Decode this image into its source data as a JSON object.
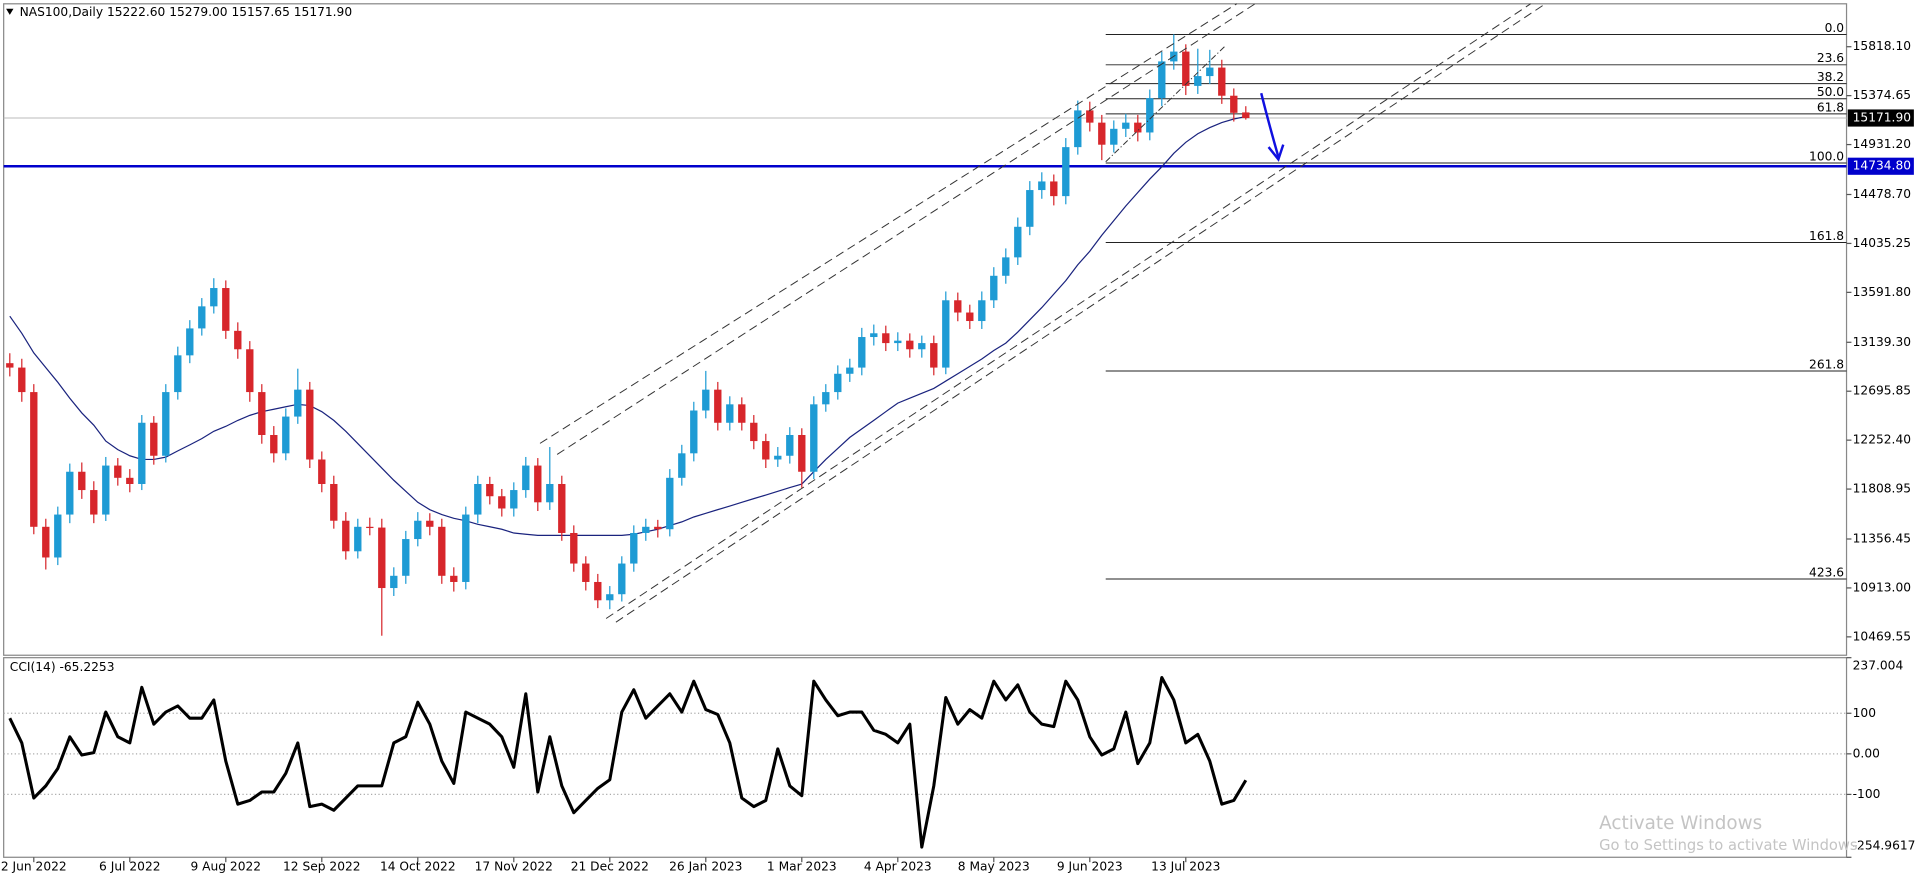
{
  "chart_data": [
    {
      "type": "candlestick",
      "header": "NAS100,Daily  15222.60 15279.00 15157.65 15171.90",
      "categories": [
        null,
        null,
        "2 Jun 2022",
        null,
        null,
        null,
        null,
        null,
        null,
        null,
        "6 Jul 2022",
        null,
        null,
        null,
        null,
        null,
        null,
        null,
        "9 Aug 2022",
        null,
        null,
        null,
        null,
        null,
        null,
        null,
        "12 Sep 2022",
        null,
        null,
        null,
        null,
        null,
        null,
        null,
        "14 Oct 2022",
        null,
        null,
        null,
        null,
        null,
        null,
        null,
        "17 Nov 2022",
        null,
        null,
        null,
        null,
        null,
        null,
        null,
        "21 Dec 2022",
        null,
        null,
        null,
        null,
        null,
        null,
        null,
        "26 Jan 2023",
        null,
        null,
        null,
        null,
        null,
        null,
        null,
        "1 Mar 2023",
        null,
        null,
        null,
        null,
        null,
        null,
        null,
        "4 Apr 2023",
        null,
        null,
        null,
        null,
        null,
        null,
        null,
        "8 May 2023",
        null,
        null,
        null,
        null,
        null,
        null,
        null,
        "9 Jun 2023",
        null,
        null,
        null,
        null,
        null,
        null,
        null,
        "13 Jul 2023",
        null,
        null,
        null,
        null,
        null
      ],
      "ohlc": [
        [
          12950,
          13040,
          12830,
          12910
        ],
        [
          12910,
          12990,
          12600,
          12688
        ],
        [
          12688,
          12760,
          11400,
          11467
        ],
        [
          11467,
          11540,
          11080,
          11189
        ],
        [
          11189,
          11650,
          11120,
          11578
        ],
        [
          11578,
          12040,
          11500,
          11966
        ],
        [
          11966,
          12050,
          11720,
          11800
        ],
        [
          11800,
          11880,
          11500,
          11578
        ],
        [
          11578,
          12100,
          11520,
          12022
        ],
        [
          12022,
          12090,
          11840,
          11911
        ],
        [
          11911,
          11990,
          11780,
          11855
        ],
        [
          11855,
          12480,
          11800,
          12410
        ],
        [
          12410,
          12470,
          12030,
          12111
        ],
        [
          12111,
          12760,
          12050,
          12688
        ],
        [
          12688,
          13100,
          12620,
          13021
        ],
        [
          13021,
          13340,
          12950,
          13265
        ],
        [
          13265,
          13540,
          13200,
          13465
        ],
        [
          13465,
          13720,
          13400,
          13631
        ],
        [
          13631,
          13700,
          13170,
          13243
        ],
        [
          13243,
          13320,
          12990,
          13076
        ],
        [
          13076,
          13150,
          12600,
          12688
        ],
        [
          12688,
          12760,
          12220,
          12299
        ],
        [
          12299,
          12380,
          12050,
          12133
        ],
        [
          12133,
          12540,
          12070,
          12466
        ],
        [
          12466,
          12900,
          12400,
          12710
        ],
        [
          12710,
          12780,
          12000,
          12077
        ],
        [
          12077,
          12150,
          11780,
          11855
        ],
        [
          11855,
          11930,
          11450,
          11522
        ],
        [
          11522,
          11600,
          11170,
          11245
        ],
        [
          11245,
          11540,
          11180,
          11467
        ],
        [
          11467,
          11550,
          11390,
          11460
        ],
        [
          11460,
          11540,
          10480,
          10912
        ],
        [
          10912,
          11100,
          10840,
          11023
        ],
        [
          11023,
          11430,
          10950,
          11356
        ],
        [
          11356,
          11600,
          11290,
          11522
        ],
        [
          11522,
          11590,
          11390,
          11467
        ],
        [
          11467,
          11540,
          10950,
          11023
        ],
        [
          11023,
          11100,
          10880,
          10967
        ],
        [
          10967,
          11650,
          10900,
          11578
        ],
        [
          11578,
          11930,
          11500,
          11855
        ],
        [
          11855,
          11920,
          11670,
          11744
        ],
        [
          11744,
          11810,
          11560,
          11633
        ],
        [
          11633,
          11870,
          11560,
          11800
        ],
        [
          11800,
          12100,
          11730,
          12022
        ],
        [
          12022,
          12090,
          11610,
          11689
        ],
        [
          11689,
          12190,
          11620,
          11855
        ],
        [
          11855,
          11930,
          11340,
          11411
        ],
        [
          11411,
          11480,
          11060,
          11134
        ],
        [
          11134,
          11200,
          10890,
          10967
        ],
        [
          10967,
          11040,
          10730,
          10801
        ],
        [
          10801,
          10930,
          10720,
          10856
        ],
        [
          10856,
          11200,
          10790,
          11134
        ],
        [
          11134,
          11480,
          11060,
          11411
        ],
        [
          11411,
          11540,
          11340,
          11467
        ],
        [
          11467,
          11530,
          11370,
          11445
        ],
        [
          11445,
          11990,
          11380,
          11911
        ],
        [
          11911,
          12210,
          11840,
          12133
        ],
        [
          12133,
          12600,
          12060,
          12521
        ],
        [
          12521,
          12880,
          12450,
          12710
        ],
        [
          12710,
          12780,
          12340,
          12410
        ],
        [
          12410,
          12650,
          12340,
          12577
        ],
        [
          12577,
          12640,
          12340,
          12410
        ],
        [
          12410,
          12480,
          12170,
          12244
        ],
        [
          12244,
          12310,
          12000,
          12077
        ],
        [
          12077,
          12190,
          12010,
          12111
        ],
        [
          12111,
          12370,
          12040,
          12299
        ],
        [
          12299,
          12360,
          11820,
          11966
        ],
        [
          11966,
          12650,
          11900,
          12577
        ],
        [
          12577,
          12760,
          12510,
          12688
        ],
        [
          12688,
          12930,
          12620,
          12854
        ],
        [
          12854,
          12990,
          12780,
          12910
        ],
        [
          12910,
          13270,
          12840,
          13187
        ],
        [
          13187,
          13300,
          13110,
          13221
        ],
        [
          13221,
          13290,
          13060,
          13132
        ],
        [
          13132,
          13230,
          13060,
          13154
        ],
        [
          13154,
          13220,
          13000,
          13076
        ],
        [
          13076,
          13200,
          13000,
          13132
        ],
        [
          13132,
          13200,
          12840,
          12910
        ],
        [
          12910,
          13600,
          12850,
          13520
        ],
        [
          13520,
          13590,
          13330,
          13409
        ],
        [
          13409,
          13480,
          13260,
          13332
        ],
        [
          13332,
          13600,
          13260,
          13520
        ],
        [
          13520,
          13820,
          13450,
          13742
        ],
        [
          13742,
          13990,
          13670,
          13909
        ],
        [
          13909,
          14270,
          13840,
          14186
        ],
        [
          14186,
          14600,
          14110,
          14519
        ],
        [
          14519,
          14680,
          14440,
          14597
        ],
        [
          14597,
          14660,
          14380,
          14464
        ],
        [
          14464,
          14990,
          14390,
          14908
        ],
        [
          14908,
          15330,
          14840,
          15241
        ],
        [
          15241,
          15320,
          15050,
          15130
        ],
        [
          15130,
          15200,
          14790,
          14930
        ],
        [
          14930,
          15150,
          14860,
          15074
        ],
        [
          15074,
          15210,
          15000,
          15130
        ],
        [
          15130,
          15200,
          14960,
          15041
        ],
        [
          15041,
          15430,
          14970,
          15352
        ],
        [
          15352,
          15770,
          15280,
          15685
        ],
        [
          15685,
          15930,
          15610,
          15774
        ],
        [
          15774,
          15840,
          15380,
          15463
        ],
        [
          15463,
          15800,
          15390,
          15552
        ],
        [
          15552,
          15790,
          15480,
          15629
        ],
        [
          15629,
          15700,
          15300,
          15374
        ],
        [
          15374,
          15440,
          15140,
          15219
        ],
        [
          15222.6,
          15279,
          15157.65,
          15171.9
        ]
      ],
      "up_color": "#1e9bd4",
      "down_color": "#d7262b",
      "ma": {
        "color": "#1a237e",
        "values": [
          13376,
          13221,
          13043,
          12910,
          12777,
          12632,
          12499,
          12388,
          12244,
          12166,
          12111,
          12077,
          12077,
          12099,
          12155,
          12210,
          12266,
          12333,
          12377,
          12432,
          12477,
          12510,
          12532,
          12555,
          12577,
          12566,
          12510,
          12432,
          12333,
          12222,
          12111,
          12000,
          11889,
          11789,
          11689,
          11622,
          11578,
          11544,
          11522,
          11489,
          11467,
          11445,
          11411,
          11400,
          11389,
          11389,
          11389,
          11389,
          11389,
          11389,
          11389,
          11389,
          11400,
          11422,
          11445,
          11478,
          11511,
          11556,
          11589,
          11622,
          11655,
          11689,
          11722,
          11755,
          11789,
          11822,
          11855,
          11966,
          12077,
          12177,
          12277,
          12355,
          12432,
          12510,
          12588,
          12632,
          12677,
          12721,
          12788,
          12854,
          12921,
          12987,
          13065,
          13132,
          13232,
          13343,
          13454,
          13576,
          13698,
          13842,
          13964,
          14109,
          14242,
          14375,
          14497,
          14619,
          14730,
          14852,
          14952,
          15030,
          15085,
          15130,
          15163,
          15185
        ]
      },
      "ylim": [
        10303,
        16207
      ],
      "yticks": [
        {
          "value": 15818.1,
          "label": "15818.10"
        },
        15374.65,
        {
          "value": 14931.2,
          "label": "14931.20"
        },
        {
          "value": 14478.7,
          "label": "14478.70"
        },
        14035.25,
        {
          "value": 13591.8,
          "label": "13591.80"
        },
        {
          "value": 13139.3,
          "label": "13139.30"
        },
        12695.85,
        {
          "value": 12252.4,
          "label": "12252.40"
        },
        11808.95,
        11356.45,
        {
          "value": 10913,
          "label": "10913.00"
        },
        10469.55
      ],
      "current_price": {
        "value": 15171.9,
        "label": "15171.90"
      },
      "hline": {
        "value": 14734.8,
        "label": "14734.80",
        "color": "#0000cc"
      },
      "fib": {
        "high": 15929,
        "low": 14764,
        "levels": [
          0,
          23.6,
          38.2,
          50,
          61.8,
          100,
          161.8,
          261.8,
          423.6
        ],
        "level_labels": [
          "0.0",
          "23.6",
          "38.2",
          "50.0",
          "61.8",
          "100.0",
          "161.8",
          "261.8",
          "423.6"
        ]
      }
    },
    {
      "type": "line",
      "title": "CCI(14) -65.2253",
      "color": "#000000",
      "values": [
        88,
        27,
        -109,
        -79,
        -36,
        42,
        -3,
        3,
        103,
        42,
        27,
        164,
        73,
        103,
        118,
        88,
        88,
        133,
        -18,
        -124,
        -115,
        -94,
        -94,
        -48,
        27,
        -130,
        -124,
        -139,
        -109,
        -79,
        -79,
        -79,
        27,
        42,
        127,
        73,
        -18,
        -73,
        103,
        88,
        73,
        42,
        -33,
        148,
        -94,
        42,
        -79,
        -145,
        -115,
        -85,
        -64,
        103,
        158,
        88,
        118,
        148,
        103,
        179,
        109,
        97,
        27,
        -109,
        -130,
        -115,
        12,
        -79,
        -103,
        179,
        133,
        94,
        103,
        103,
        58,
        48,
        27,
        73,
        -230,
        -79,
        139,
        73,
        109,
        88,
        179,
        133,
        170,
        103,
        73,
        67,
        179,
        133,
        42,
        -3,
        12,
        103,
        -24,
        27,
        188,
        133,
        27,
        48,
        -18,
        -124,
        -115,
        -65.2253
      ],
      "ylim": [
        -254.9617,
        237.004
      ],
      "yticks": [
        237.004,
        100,
        {
          "value": 0,
          "label": "0.00"
        },
        -100,
        -254.9617
      ]
    }
  ],
  "watermark": {
    "title": "Activate Windows",
    "subtitle": "Go to Settings to activate Windows."
  }
}
